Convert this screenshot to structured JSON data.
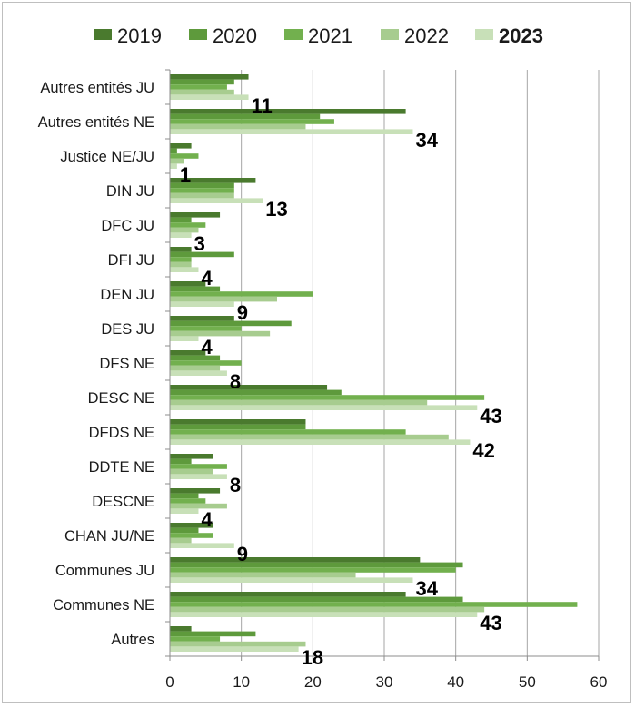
{
  "chart_data": {
    "type": "bar",
    "orientation": "horizontal",
    "title": "",
    "xlabel": "",
    "ylabel": "",
    "xlim": [
      0,
      60
    ],
    "x_ticks": [
      "0",
      "10",
      "20",
      "30",
      "40",
      "50",
      "60"
    ],
    "grid": true,
    "legend_position": "top",
    "categories": [
      "Autres entités JU",
      "Autres entités NE",
      "Justice NE/JU",
      "DIN JU",
      "DFC JU",
      "DFI JU",
      "DEN JU",
      "DES JU",
      "DFS NE",
      "DESC NE",
      "DFDS NE",
      "DDTE NE",
      "DESCNE",
      "CHAN JU/NE",
      "Communes JU",
      "Communes NE",
      "Autres"
    ],
    "series": [
      {
        "name": "2019",
        "color": "#4a7a2e",
        "values": [
          11,
          33,
          3,
          12,
          7,
          3,
          5,
          9,
          5,
          22,
          19,
          6,
          7,
          6,
          35,
          33,
          3
        ]
      },
      {
        "name": "2020",
        "color": "#5e9a3c",
        "values": [
          9,
          21,
          1,
          9,
          3,
          9,
          7,
          17,
          7,
          24,
          19,
          3,
          4,
          4,
          41,
          41,
          12
        ]
      },
      {
        "name": "2021",
        "color": "#72b04e",
        "values": [
          8,
          23,
          4,
          9,
          5,
          3,
          20,
          10,
          10,
          44,
          33,
          8,
          5,
          6,
          40,
          57,
          7
        ]
      },
      {
        "name": "2022",
        "color": "#a7cc8f",
        "values": [
          9,
          19,
          2,
          9,
          4,
          3,
          15,
          14,
          7,
          36,
          39,
          6,
          8,
          3,
          26,
          44,
          19
        ]
      },
      {
        "name": "2023",
        "color": "#c8e0b8",
        "bold": true,
        "values": [
          11,
          34,
          1,
          13,
          3,
          4,
          9,
          4,
          8,
          43,
          42,
          8,
          4,
          9,
          34,
          43,
          18
        ]
      }
    ],
    "data_labels_series": "2023",
    "data_labels": [
      "11",
      "34",
      "1",
      "13",
      "3",
      "4",
      "9",
      "4",
      "8",
      "43",
      "42",
      "8",
      "4",
      "9",
      "34",
      "43",
      "18"
    ]
  }
}
